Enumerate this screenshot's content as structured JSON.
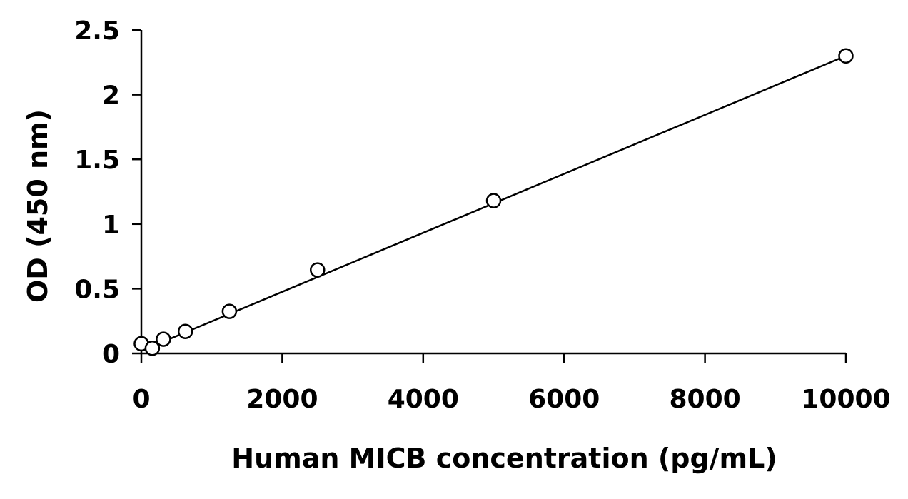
{
  "chart_data": {
    "type": "scatter",
    "title": "",
    "xlabel": "Human MICB concentration (pg/mL)",
    "ylabel": "OD (450 nm)",
    "xlim": [
      0,
      10000
    ],
    "ylim": [
      0,
      2.5
    ],
    "x_ticks": [
      0,
      2000,
      4000,
      6000,
      8000,
      10000
    ],
    "y_ticks": [
      0,
      0.5,
      1,
      1.5,
      2,
      2.5
    ],
    "x_tick_labels": [
      "0",
      "2000",
      "4000",
      "6000",
      "8000",
      "10000"
    ],
    "y_tick_labels": [
      "0",
      "0.5",
      "1",
      "1.5",
      "2",
      "2.5"
    ],
    "grid": false,
    "legend": "none",
    "marker": "open-circle",
    "colors": {
      "axis": "#000000",
      "marker": "#000000",
      "line": "#000000",
      "background": "#ffffff"
    },
    "points": [
      {
        "x": 0,
        "y": 0.075
      },
      {
        "x": 156,
        "y": 0.04
      },
      {
        "x": 313,
        "y": 0.11
      },
      {
        "x": 625,
        "y": 0.17
      },
      {
        "x": 1250,
        "y": 0.325
      },
      {
        "x": 2500,
        "y": 0.645
      },
      {
        "x": 5000,
        "y": 1.18
      },
      {
        "x": 10000,
        "y": 2.3
      }
    ],
    "fit_line": {
      "x": [
        0,
        10000
      ],
      "y": [
        0.02,
        2.3
      ]
    }
  }
}
